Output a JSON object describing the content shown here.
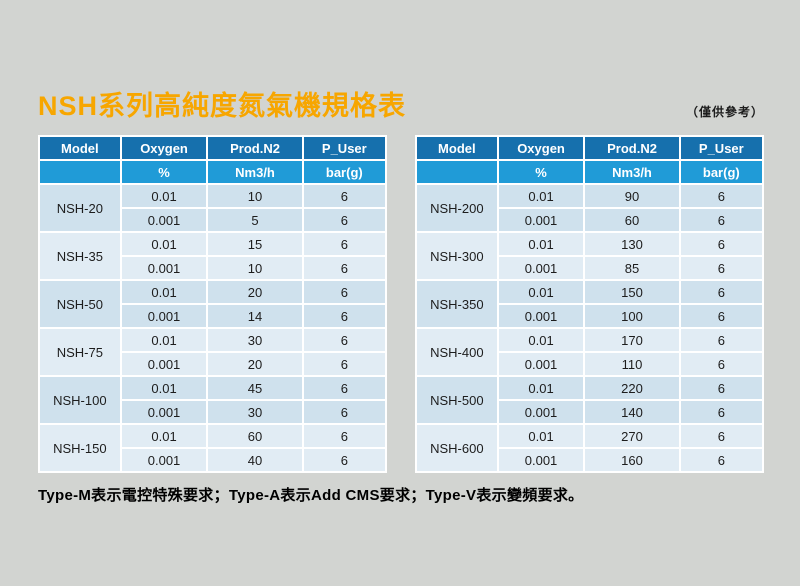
{
  "page": {
    "title": "NSH系列高純度氮氣機規格表",
    "reference_note": "（僅供參考）",
    "footer_note": "Type-M表示電控特殊要求；Type-A表示Add CMS要求；Type-V表示變頻要求。"
  },
  "colors": {
    "background": "#d2d4d1",
    "title_orange": "#f7a600",
    "header_blue": "#1670ad",
    "unit_blue": "#209bd7",
    "row_dark": "#cfe1ed",
    "row_light": "#e1ecf4"
  },
  "tables": [
    {
      "headers": [
        "Model",
        "Oxygen",
        "Prod.N2",
        "P_User"
      ],
      "units": [
        "",
        "%",
        "Nm3/h",
        "bar(g)"
      ],
      "rows": [
        {
          "model": "NSH-20",
          "entries": [
            [
              "0.01",
              "10",
              "6"
            ],
            [
              "0.001",
              "5",
              "6"
            ]
          ]
        },
        {
          "model": "NSH-35",
          "entries": [
            [
              "0.01",
              "15",
              "6"
            ],
            [
              "0.001",
              "10",
              "6"
            ]
          ]
        },
        {
          "model": "NSH-50",
          "entries": [
            [
              "0.01",
              "20",
              "6"
            ],
            [
              "0.001",
              "14",
              "6"
            ]
          ]
        },
        {
          "model": "NSH-75",
          "entries": [
            [
              "0.01",
              "30",
              "6"
            ],
            [
              "0.001",
              "20",
              "6"
            ]
          ]
        },
        {
          "model": "NSH-100",
          "entries": [
            [
              "0.01",
              "45",
              "6"
            ],
            [
              "0.001",
              "30",
              "6"
            ]
          ]
        },
        {
          "model": "NSH-150",
          "entries": [
            [
              "0.01",
              "60",
              "6"
            ],
            [
              "0.001",
              "40",
              "6"
            ]
          ]
        }
      ]
    },
    {
      "headers": [
        "Model",
        "Oxygen",
        "Prod.N2",
        "P_User"
      ],
      "units": [
        "",
        "%",
        "Nm3/h",
        "bar(g)"
      ],
      "rows": [
        {
          "model": "NSH-200",
          "entries": [
            [
              "0.01",
              "90",
              "6"
            ],
            [
              "0.001",
              "60",
              "6"
            ]
          ]
        },
        {
          "model": "NSH-300",
          "entries": [
            [
              "0.01",
              "130",
              "6"
            ],
            [
              "0.001",
              "85",
              "6"
            ]
          ]
        },
        {
          "model": "NSH-350",
          "entries": [
            [
              "0.01",
              "150",
              "6"
            ],
            [
              "0.001",
              "100",
              "6"
            ]
          ]
        },
        {
          "model": "NSH-400",
          "entries": [
            [
              "0.01",
              "170",
              "6"
            ],
            [
              "0.001",
              "110",
              "6"
            ]
          ]
        },
        {
          "model": "NSH-500",
          "entries": [
            [
              "0.01",
              "220",
              "6"
            ],
            [
              "0.001",
              "140",
              "6"
            ]
          ]
        },
        {
          "model": "NSH-600",
          "entries": [
            [
              "0.01",
              "270",
              "6"
            ],
            [
              "0.001",
              "160",
              "6"
            ]
          ]
        }
      ]
    }
  ]
}
